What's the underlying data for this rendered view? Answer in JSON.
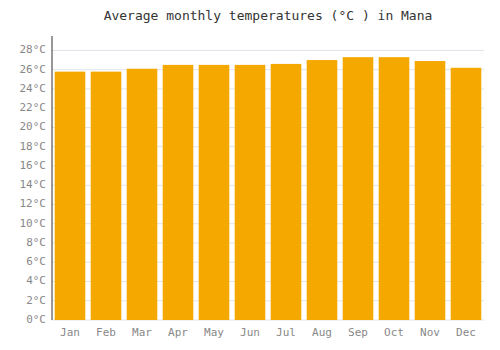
{
  "chart_data": {
    "type": "bar",
    "title": "Average monthly temperatures (°C ) in Mana",
    "categories": [
      "Jan",
      "Feb",
      "Mar",
      "Apr",
      "May",
      "Jun",
      "Jul",
      "Aug",
      "Sep",
      "Oct",
      "Nov",
      "Dec"
    ],
    "values": [
      25.8,
      25.8,
      26.1,
      26.5,
      26.5,
      26.5,
      26.6,
      27.0,
      27.3,
      27.3,
      26.9,
      26.2
    ],
    "color": "#F5A800",
    "ylim": [
      0,
      29.5
    ],
    "yticks": [
      {
        "value": 0,
        "label": "0°C"
      },
      {
        "value": 2,
        "label": "2°C"
      },
      {
        "value": 4,
        "label": "4°C"
      },
      {
        "value": 6,
        "label": "6°C"
      },
      {
        "value": 8,
        "label": "8°C"
      },
      {
        "value": 10,
        "label": "10°C"
      },
      {
        "value": 12,
        "label": "12°C"
      },
      {
        "value": 14,
        "label": "14°C"
      },
      {
        "value": 16,
        "label": "16°C"
      },
      {
        "value": 18,
        "label": "18°C"
      },
      {
        "value": 20,
        "label": "20°C"
      },
      {
        "value": 22,
        "label": "22°C"
      },
      {
        "value": 24,
        "label": "24°C"
      },
      {
        "value": 26,
        "label": "26°C"
      },
      {
        "value": 28,
        "label": "28°C"
      }
    ],
    "grid": true
  }
}
